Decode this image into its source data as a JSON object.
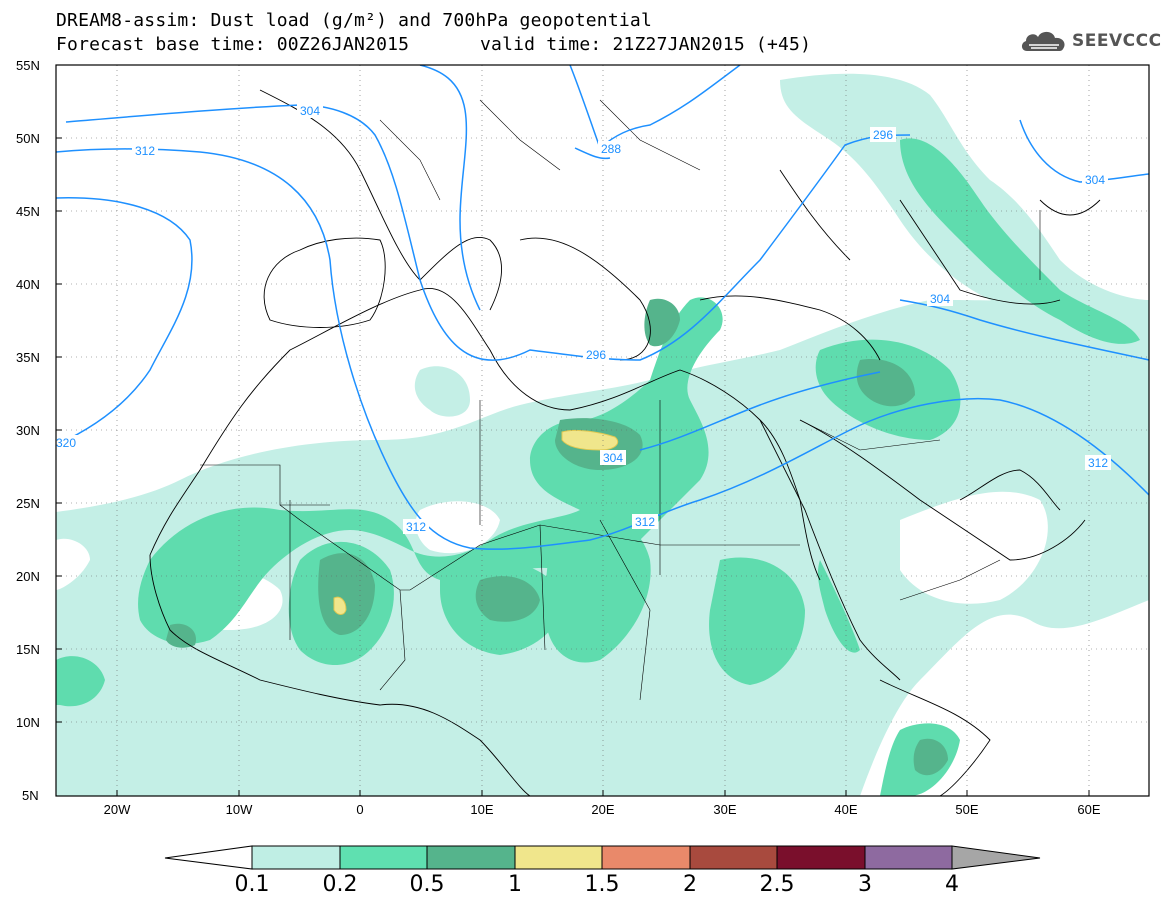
{
  "header": {
    "title_line1": "DREAM8-assim: Dust load (g/m²) and 700hPa geopotential",
    "forecast_base": "Forecast base time: 00Z26JAN2015",
    "valid_time": "valid time: 21Z27JAN2015 (+45)"
  },
  "logo": {
    "text": "SEEVCCC",
    "icon": "cloud-logo-icon"
  },
  "map": {
    "lon_range": [
      -25,
      65
    ],
    "lat_range": [
      5,
      55
    ],
    "lat_labels": [
      "55N",
      "50N",
      "45N",
      "40N",
      "35N",
      "30N",
      "25N",
      "20N",
      "15N",
      "10N",
      "5N"
    ],
    "lon_labels": [
      "20W",
      "10W",
      "0",
      "10E",
      "20E",
      "30E",
      "40E",
      "50E",
      "60E"
    ],
    "grid": "dotted",
    "contour_color": "#1e90ff",
    "contour_labels": [
      "304",
      "312",
      "288",
      "296",
      "304",
      "320",
      "296",
      "304",
      "304",
      "312",
      "312",
      "312"
    ]
  },
  "colorbar": {
    "levels": [
      "0.1",
      "0.2",
      "0.5",
      "1",
      "1.5",
      "2",
      "2.5",
      "3",
      "4"
    ],
    "colors": [
      "#ffffff",
      "#bfeee4",
      "#5fe0b0",
      "#55b48c",
      "#f0e68c",
      "#e9896a",
      "#a84a3e",
      "#7a0f2c",
      "#8e6aa0",
      "#a6a6a6"
    ]
  }
}
